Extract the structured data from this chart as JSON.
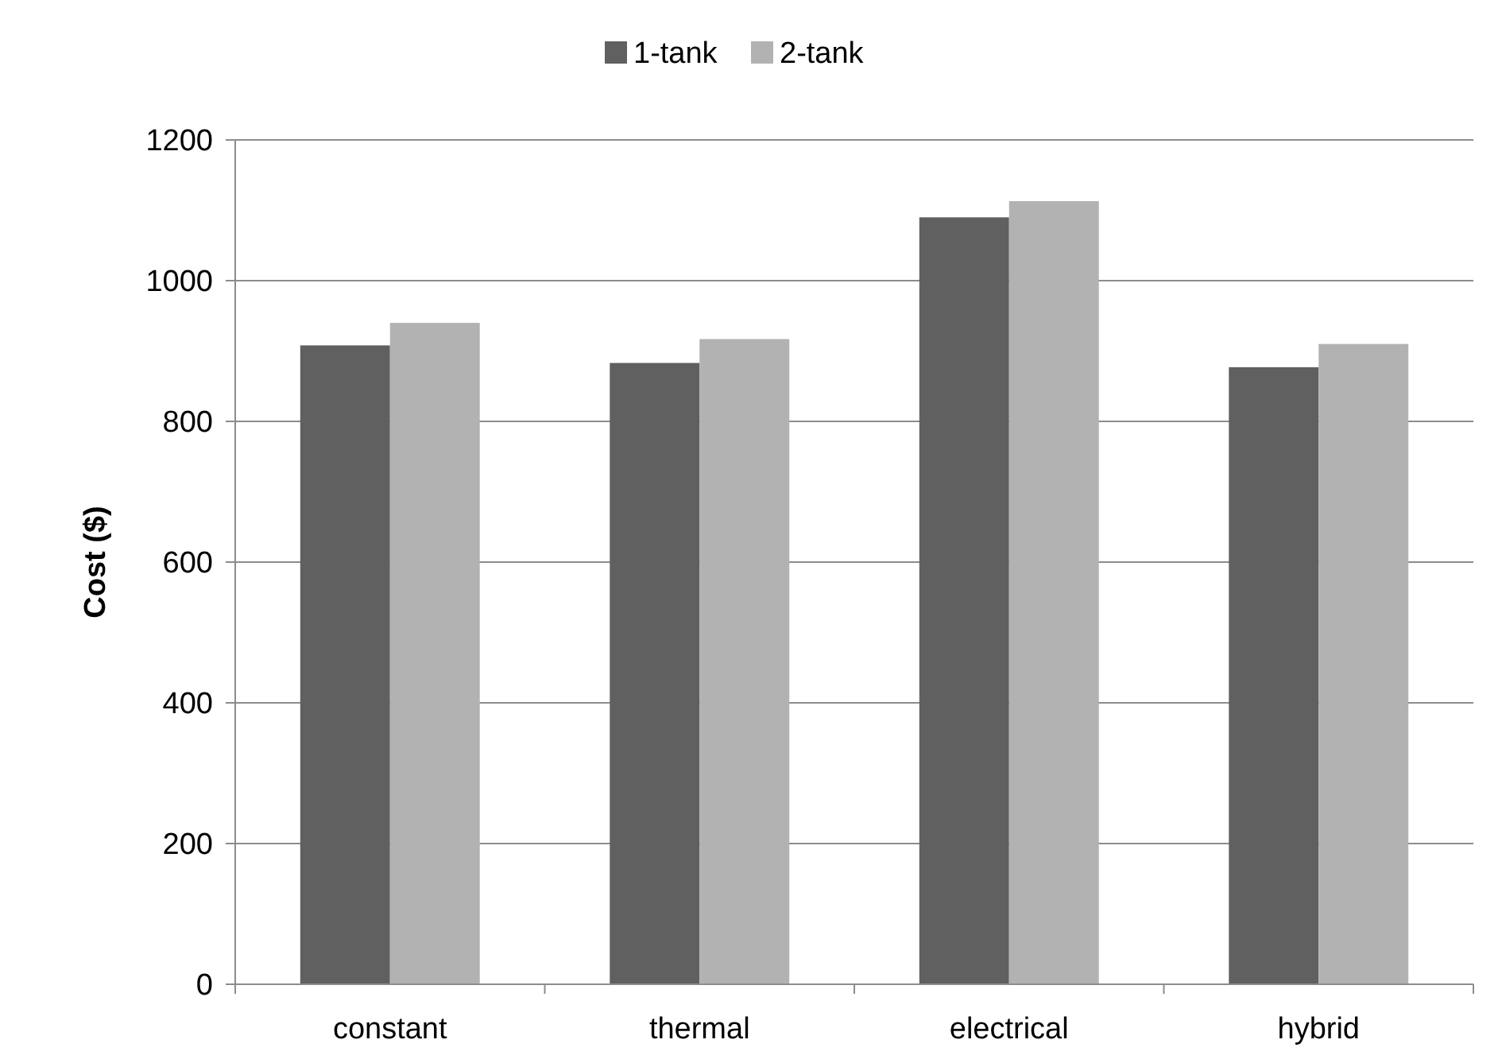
{
  "chart_data": {
    "type": "bar",
    "ylabel": "Cost ($)",
    "categories": [
      "constant",
      "thermal",
      "electrical",
      "hybrid"
    ],
    "series": [
      {
        "name": "1-tank",
        "color": "#606060",
        "values": [
          908,
          883,
          1090,
          877
        ]
      },
      {
        "name": "2-tank",
        "color": "#b2b2b2",
        "values": [
          940,
          917,
          1113,
          910
        ]
      }
    ],
    "ylim": [
      0,
      1200
    ],
    "yticks": [
      0,
      200,
      400,
      600,
      800,
      1000,
      1200
    ],
    "grid": "y",
    "legend": "top"
  }
}
